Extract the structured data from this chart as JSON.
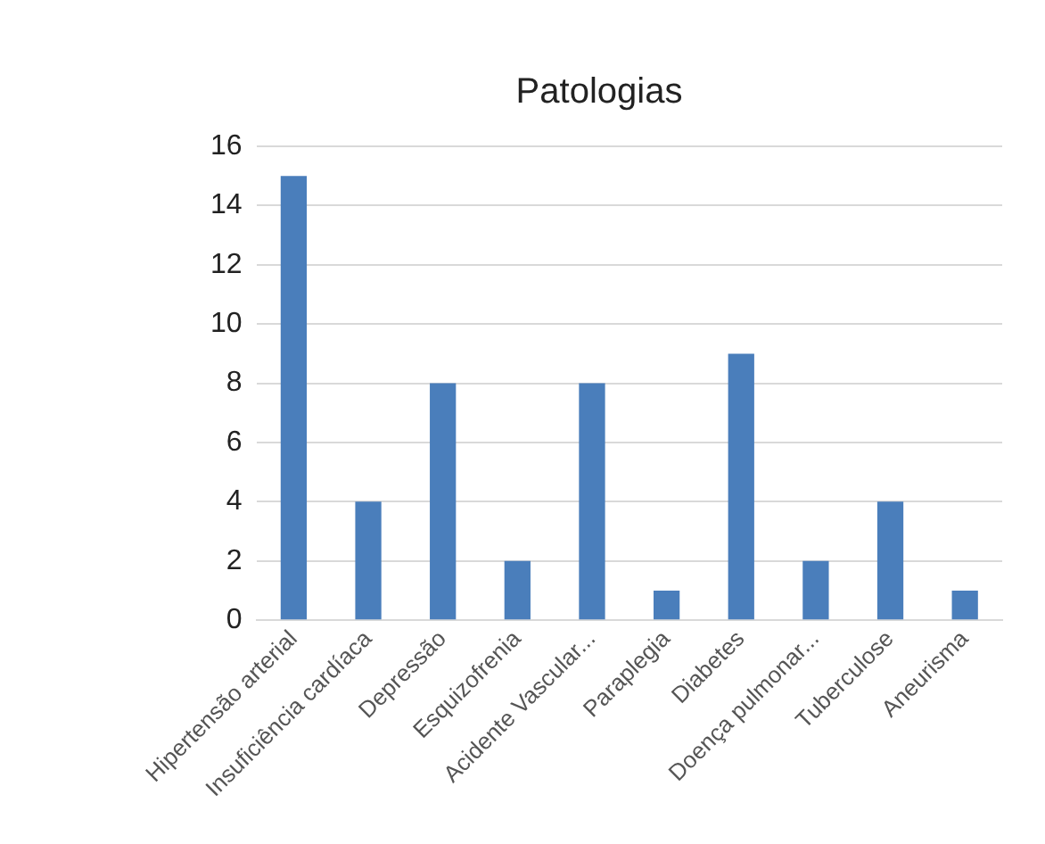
{
  "chart_data": {
    "type": "bar",
    "title": "Patologias",
    "categories": [
      "Hipertensão arterial",
      "Insuficiência cardíaca",
      "Depressão",
      "Esquizofrenia",
      "Acidente Vascular...",
      "Paraplegia",
      "Diabetes",
      "Doença pulmonar...",
      "Tuberculose",
      "Aneurisma"
    ],
    "values": [
      15,
      4,
      8,
      2,
      8,
      1,
      9,
      2,
      4,
      1
    ],
    "color": "#4a7ebb",
    "ylim": [
      0,
      16
    ],
    "yticks": [
      0,
      2,
      4,
      6,
      8,
      10,
      12,
      14,
      16
    ],
    "grid": "y"
  }
}
